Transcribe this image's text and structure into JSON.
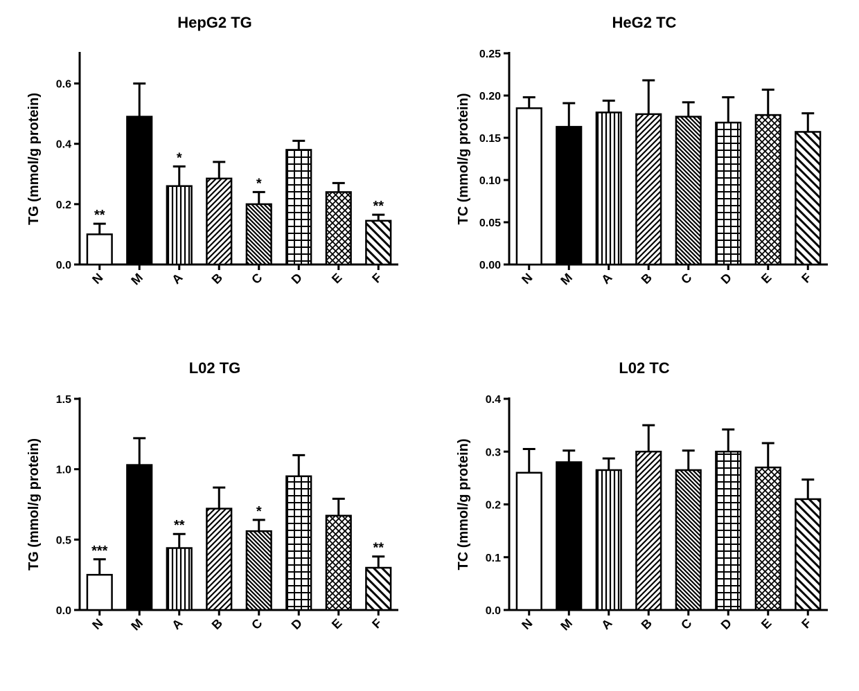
{
  "global": {
    "categories": [
      "N",
      "M",
      "A",
      "B",
      "C",
      "D",
      "E",
      "F"
    ],
    "bg": "#ffffff",
    "axis_color": "#000000",
    "axis_width": 3,
    "bar_width": 0.62,
    "title_fontsize": 22,
    "ylabel_fontsize": 20,
    "tick_fontsize": 16,
    "xlabel_fontsize": 18,
    "err_cap": 9,
    "patterns": {
      "N": "none",
      "M": "solid",
      "A": "vlines",
      "B": "diag45",
      "C": "diag135_dense",
      "D": "grid",
      "E": "crosshatch",
      "F": "diag135_wide"
    }
  },
  "panels": [
    {
      "id": "hepg2_tg",
      "title": "HepG2 TG",
      "ylabel": "TG (mmol/g protein)",
      "ylim": [
        0.0,
        0.7
      ],
      "ytick_step": 0.2,
      "tick_decimals": 1,
      "values": [
        0.1,
        0.49,
        0.26,
        0.285,
        0.2,
        0.38,
        0.24,
        0.145
      ],
      "errors": [
        0.035,
        0.11,
        0.065,
        0.055,
        0.04,
        0.03,
        0.03,
        0.02
      ],
      "sig": [
        "**",
        "",
        "*",
        "",
        "*",
        "",
        "",
        "**"
      ]
    },
    {
      "id": "heg2_tc",
      "title": "HeG2 TC",
      "ylabel": "TC (mmol/g protein)",
      "ylim": [
        0.0,
        0.25
      ],
      "ytick_step": 0.05,
      "tick_decimals": 2,
      "values": [
        0.185,
        0.163,
        0.18,
        0.178,
        0.175,
        0.168,
        0.177,
        0.157
      ],
      "errors": [
        0.013,
        0.028,
        0.014,
        0.04,
        0.017,
        0.03,
        0.03,
        0.022
      ],
      "sig": [
        "",
        "",
        "",
        "",
        "",
        "",
        "",
        ""
      ]
    },
    {
      "id": "l02_tg",
      "title": "L02 TG",
      "ylabel": "TG (mmol/g protein)",
      "ylim": [
        0.0,
        1.5
      ],
      "ytick_step": 0.5,
      "tick_decimals": 1,
      "values": [
        0.25,
        1.03,
        0.44,
        0.72,
        0.56,
        0.95,
        0.67,
        0.3
      ],
      "errors": [
        0.11,
        0.19,
        0.1,
        0.15,
        0.08,
        0.15,
        0.12,
        0.08
      ],
      "sig": [
        "***",
        "",
        "**",
        "",
        "*",
        "",
        "",
        "**"
      ]
    },
    {
      "id": "l02_tc",
      "title": "L02 TC",
      "ylabel": "TC (mmol/g protein)",
      "ylim": [
        0.0,
        0.4
      ],
      "ytick_step": 0.1,
      "tick_decimals": 1,
      "values": [
        0.26,
        0.28,
        0.265,
        0.3,
        0.265,
        0.3,
        0.27,
        0.21
      ],
      "errors": [
        0.045,
        0.022,
        0.022,
        0.05,
        0.037,
        0.042,
        0.046,
        0.037
      ],
      "sig": [
        "",
        "",
        "",
        "",
        "",
        "",
        "",
        ""
      ]
    }
  ]
}
